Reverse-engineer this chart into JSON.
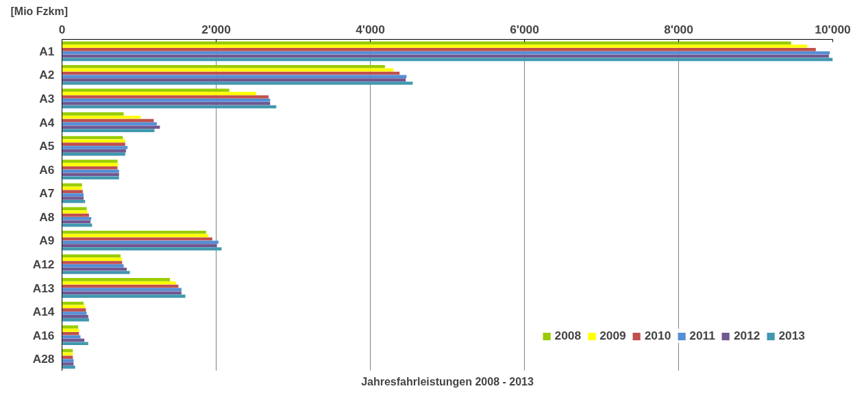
{
  "chart_data": {
    "type": "bar",
    "orientation": "horizontal",
    "title": "Jahresfahrleistungen 2008 - 2013",
    "xlabel": "[Mio Fzkm]",
    "categories": [
      "A1",
      "A2",
      "A3",
      "A4",
      "A5",
      "A6",
      "A7",
      "A8",
      "A9",
      "A12",
      "A13",
      "A14",
      "A16",
      "A28"
    ],
    "series": [
      {
        "name": "2008",
        "color": "#99cc00",
        "values": [
          9460,
          4190,
          2170,
          800,
          790,
          720,
          260,
          320,
          1870,
          760,
          1400,
          280,
          210,
          140
        ]
      },
      {
        "name": "2009",
        "color": "#ffff00",
        "values": [
          9670,
          4300,
          2520,
          1020,
          820,
          730,
          260,
          330,
          1900,
          780,
          1480,
          300,
          220,
          140
        ]
      },
      {
        "name": "2010",
        "color": "#c0504d",
        "values": [
          9780,
          4380,
          2680,
          1190,
          820,
          720,
          270,
          350,
          1950,
          780,
          1510,
          310,
          220,
          140
        ]
      },
      {
        "name": "2011",
        "color": "#558ed5",
        "values": [
          9960,
          4470,
          2700,
          1230,
          850,
          740,
          280,
          380,
          2030,
          800,
          1550,
          320,
          240,
          150
        ]
      },
      {
        "name": "2012",
        "color": "#705891",
        "values": [
          9950,
          4460,
          2700,
          1270,
          830,
          740,
          280,
          370,
          2010,
          840,
          1550,
          340,
          290,
          150
        ]
      },
      {
        "name": "2013",
        "color": "#4198af",
        "values": [
          10000,
          4550,
          2780,
          1200,
          820,
          740,
          300,
          390,
          2070,
          880,
          1600,
          350,
          340,
          170
        ]
      }
    ],
    "xlim": [
      0,
      10000
    ],
    "xticks": [
      0,
      {
        "value": 2000,
        "label": "2'000"
      },
      {
        "value": 4000,
        "label": "4'000"
      },
      {
        "value": 6000,
        "label": "6'000"
      },
      {
        "value": 8000,
        "label": "8'000"
      },
      {
        "value": 10000,
        "label": "10'000"
      }
    ],
    "grid": "x",
    "legend": "bottom right"
  }
}
